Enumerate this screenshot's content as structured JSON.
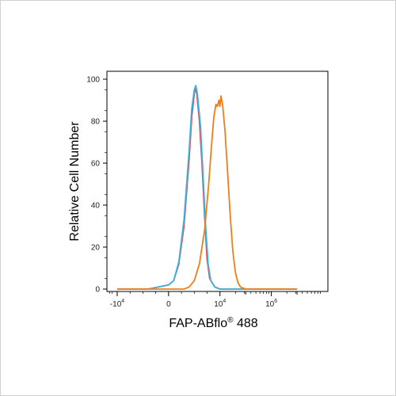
{
  "chart_data": {
    "type": "line",
    "title": "",
    "xlabel": "FAP-ABflo",
    "xlabel_sup": "®",
    "xlabel_suffix": " 488",
    "ylabel": "Relative Cell Number",
    "ylim": [
      0,
      100
    ],
    "y_ticks": [
      0,
      20,
      40,
      60,
      80,
      100
    ],
    "x_scale": "biexponential",
    "x_ticks": [
      {
        "base": "-10",
        "exp": "4"
      },
      {
        "base": "0",
        "exp": ""
      },
      {
        "base": "10",
        "exp": "4"
      },
      {
        "base": "10",
        "exp": "6"
      }
    ],
    "series": [
      {
        "color": "#e8424f",
        "points": [
          [
            -1.0,
            0
          ],
          [
            -0.4,
            0
          ],
          [
            -0.2,
            1
          ],
          [
            0.0,
            2
          ],
          [
            0.1,
            4
          ],
          [
            0.2,
            12
          ],
          [
            0.3,
            30
          ],
          [
            0.4,
            62
          ],
          [
            0.45,
            82
          ],
          [
            0.5,
            93
          ],
          [
            0.52,
            96
          ],
          [
            0.55,
            93
          ],
          [
            0.6,
            80
          ],
          [
            0.65,
            60
          ],
          [
            0.7,
            35
          ],
          [
            0.75,
            14
          ],
          [
            0.8,
            5
          ],
          [
            0.9,
            1
          ],
          [
            1.0,
            0
          ],
          [
            2.5,
            0
          ]
        ]
      },
      {
        "color": "#3ab4dc",
        "points": [
          [
            -1.0,
            0
          ],
          [
            -0.4,
            0
          ],
          [
            -0.2,
            1
          ],
          [
            0.0,
            2
          ],
          [
            0.1,
            4
          ],
          [
            0.2,
            13
          ],
          [
            0.3,
            33
          ],
          [
            0.4,
            66
          ],
          [
            0.45,
            86
          ],
          [
            0.5,
            95
          ],
          [
            0.53,
            97
          ],
          [
            0.56,
            93
          ],
          [
            0.62,
            78
          ],
          [
            0.67,
            55
          ],
          [
            0.72,
            30
          ],
          [
            0.77,
            12
          ],
          [
            0.82,
            4
          ],
          [
            0.9,
            1
          ],
          [
            1.0,
            0
          ],
          [
            2.5,
            0
          ]
        ]
      },
      {
        "color": "#f07d1a",
        "points": [
          [
            -1.0,
            0
          ],
          [
            0.3,
            0
          ],
          [
            0.4,
            1
          ],
          [
            0.5,
            4
          ],
          [
            0.6,
            12
          ],
          [
            0.7,
            28
          ],
          [
            0.78,
            50
          ],
          [
            0.84,
            70
          ],
          [
            0.88,
            82
          ],
          [
            0.92,
            88
          ],
          [
            0.95,
            87
          ],
          [
            0.98,
            90
          ],
          [
            1.0,
            87
          ],
          [
            1.02,
            92
          ],
          [
            1.05,
            88
          ],
          [
            1.1,
            75
          ],
          [
            1.15,
            55
          ],
          [
            1.2,
            35
          ],
          [
            1.25,
            18
          ],
          [
            1.3,
            8
          ],
          [
            1.35,
            3
          ],
          [
            1.4,
            1
          ],
          [
            1.5,
            0
          ],
          [
            2.5,
            0
          ]
        ]
      }
    ]
  }
}
